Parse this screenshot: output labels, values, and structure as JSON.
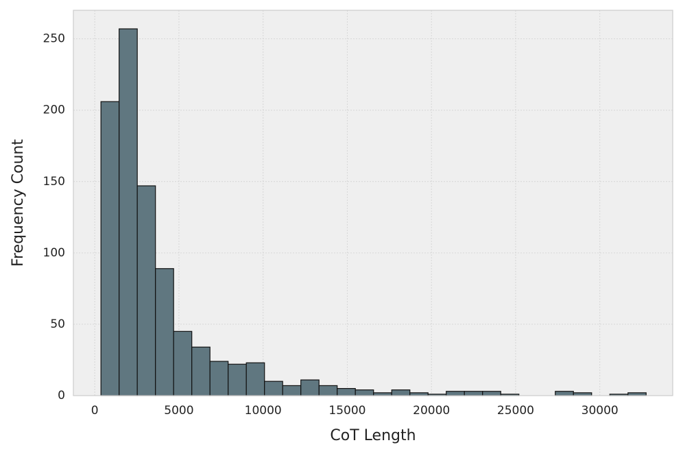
{
  "chart_data": {
    "type": "histogram",
    "xlabel": "CoT Length",
    "ylabel": "Frequency Count",
    "bins": [
      367,
      1446.5,
      2526,
      3605.5,
      4685,
      5764.5,
      6844,
      7923.5,
      9003,
      10082.5,
      11162,
      12241.5,
      13321,
      14400.5,
      15480,
      16559.5,
      17639,
      18718.5,
      19798,
      20877.5,
      21957,
      23036.5,
      24116,
      25195.5,
      26275,
      27354.5,
      28434,
      29513.5,
      30593,
      31672.5,
      32752
    ],
    "values": [
      206,
      257,
      147,
      89,
      45,
      34,
      24,
      22,
      23,
      10,
      7,
      11,
      7,
      5,
      4,
      2,
      4,
      2,
      1,
      3,
      3,
      3,
      1,
      0,
      0,
      3,
      2,
      0,
      1,
      2
    ],
    "color": "#607780",
    "edgecolor": "#111111",
    "xlim": [
      -1270,
      34330
    ],
    "ylim": [
      0,
      270
    ],
    "xticks": [
      0,
      5000,
      10000,
      15000,
      20000,
      25000,
      30000
    ],
    "yticks": [
      0,
      50,
      100,
      150,
      200,
      250
    ],
    "grid": true
  }
}
